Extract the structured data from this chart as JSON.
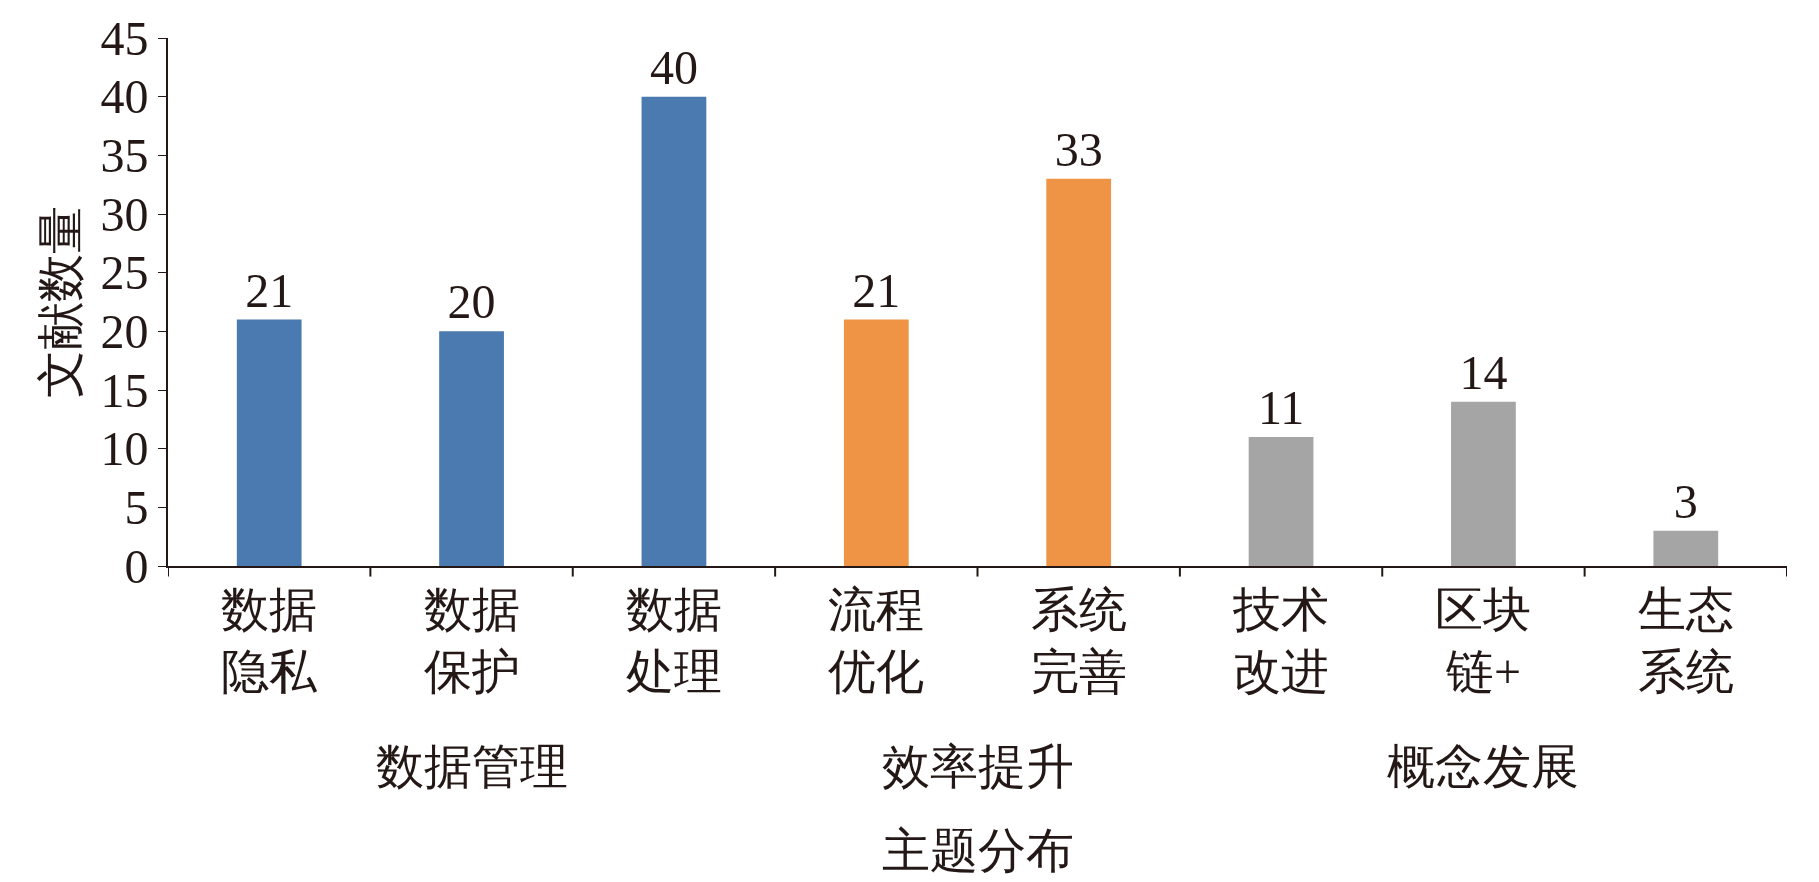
{
  "chart_data": {
    "type": "bar",
    "xlabel": "主题分布",
    "ylabel": "文献数量",
    "categories": [
      "数据隐私",
      "数据保护",
      "数据处理",
      "流程优化",
      "系统完善",
      "技术改进",
      "区块链+",
      "生态系统"
    ],
    "values": [
      21,
      20,
      40,
      21,
      33,
      11,
      14,
      3
    ],
    "colors": [
      "#4a7ab0",
      "#4a7ab0",
      "#4a7ab0",
      "#ee9444",
      "#ee9444",
      "#a5a5a5",
      "#a5a5a5",
      "#a5a5a5"
    ],
    "annotations": [
      "数据管理",
      "效率提升",
      "概念发展"
    ],
    "ylim": [
      0,
      45
    ],
    "yticks": [
      0,
      5,
      10,
      15,
      20,
      25,
      30,
      35,
      40,
      45
    ],
    "data_labels": true
  }
}
